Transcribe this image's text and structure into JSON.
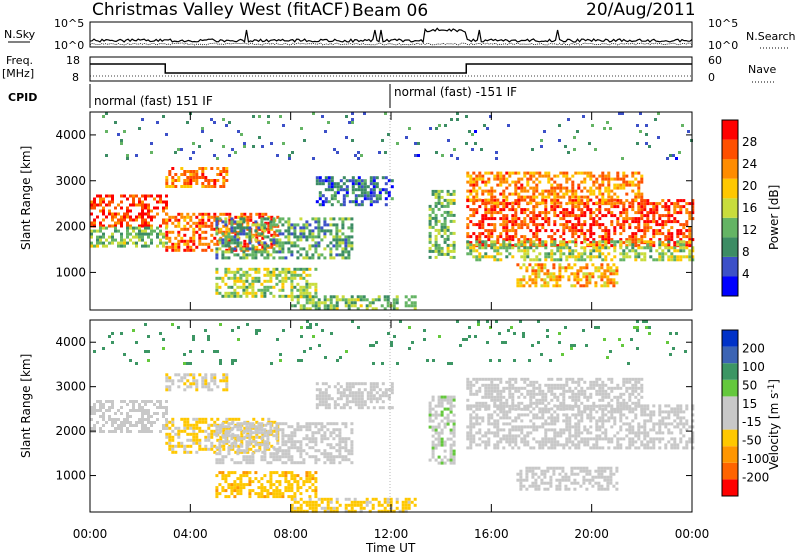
{
  "header": {
    "radar": "Christmas Valley West (fitACF)",
    "beam": "Beam 06",
    "date": "20/Aug/2011"
  },
  "strips": {
    "nsky_label": "N.Sky",
    "nsky_ticks": [
      "10^5",
      "10^0"
    ],
    "nsearch_label": "N.Search",
    "nsearch_ticks": [
      "10^5",
      "10^0"
    ],
    "freq_label": "Freq.",
    "freq_unit": "[MHz]",
    "freq_ticks": [
      "18",
      "8"
    ],
    "nave_label": "Nave",
    "nave_ticks": [
      "60",
      "0"
    ],
    "cpid_label": "CPID",
    "cpid_segments": [
      "normal (fast) 151 IF",
      "normal (fast) -151 IF"
    ]
  },
  "colors": {
    "power": [
      "#0000ff",
      "#3c50c8",
      "#3c8c64",
      "#64b464",
      "#c8dc3c",
      "#ffc800",
      "#ff8c00",
      "#ff5000",
      "#ff0000"
    ],
    "velocity": [
      "#ff0000",
      "#ff6400",
      "#ff9600",
      "#ffc800",
      "#c8c8c8",
      "#c8c8c8",
      "#64c83c",
      "#3c9664",
      "#3c64b4",
      "#0032c8"
    ]
  },
  "chart_data": [
    {
      "type": "heatmap",
      "name": "power",
      "xlabel": "",
      "ylabel": "Slant Range [km]",
      "x_ticks": [
        "00:00",
        "04:00",
        "08:00",
        "12:00",
        "16:00",
        "20:00",
        "00:00"
      ],
      "y_ticks": [
        1000,
        2000,
        3000,
        4000
      ],
      "xlim": [
        0,
        24
      ],
      "ylim": [
        180,
        4500
      ],
      "colorbar_label": "Power [dB]",
      "colorbar_ticks": [
        4,
        8,
        12,
        16,
        20,
        24,
        28
      ],
      "crange": [
        0,
        30
      ],
      "bands": [
        {
          "t": [
            0,
            3
          ],
          "r": [
            2000,
            2700
          ],
          "v": 26
        },
        {
          "t": [
            0,
            3
          ],
          "r": [
            1600,
            2000
          ],
          "v": 12
        },
        {
          "t": [
            3,
            7.5
          ],
          "r": [
            1500,
            2300
          ],
          "v": 24
        },
        {
          "t": [
            3,
            5.5
          ],
          "r": [
            2900,
            3300
          ],
          "v": 22
        },
        {
          "t": [
            5,
            10.5
          ],
          "r": [
            1300,
            2200
          ],
          "v": 10
        },
        {
          "t": [
            5,
            9
          ],
          "r": [
            500,
            1100
          ],
          "v": 14
        },
        {
          "t": [
            8,
            13
          ],
          "r": [
            200,
            500
          ],
          "v": 12
        },
        {
          "t": [
            9,
            12
          ],
          "r": [
            2500,
            3100
          ],
          "v": 6
        },
        {
          "t": [
            13.5,
            14.5
          ],
          "r": [
            1300,
            2800
          ],
          "v": 12
        },
        {
          "t": [
            15,
            24
          ],
          "r": [
            1600,
            2600
          ],
          "v": 26
        },
        {
          "t": [
            15,
            22
          ],
          "r": [
            2500,
            3200
          ],
          "v": 22
        },
        {
          "t": [
            15,
            24
          ],
          "r": [
            1300,
            1700
          ],
          "v": 14
        },
        {
          "t": [
            17,
            21
          ],
          "r": [
            700,
            1200
          ],
          "v": 20
        },
        {
          "t": [
            0,
            24
          ],
          "r": [
            3500,
            4500
          ],
          "v": 8
        }
      ]
    },
    {
      "type": "heatmap",
      "name": "velocity",
      "xlabel": "Time UT",
      "ylabel": "Slant Range [km]",
      "x_ticks": [
        "00:00",
        "04:00",
        "08:00",
        "12:00",
        "16:00",
        "20:00",
        "00:00"
      ],
      "y_ticks": [
        1000,
        2000,
        3000,
        4000
      ],
      "xlim": [
        0,
        24
      ],
      "ylim": [
        180,
        4500
      ],
      "colorbar_label": "Velocity [m s^-1]",
      "colorbar_ticks": [
        "200",
        "100",
        "50",
        "15",
        "-15",
        "-50",
        "-100",
        "-200"
      ],
      "crange": [
        -250,
        250
      ],
      "bands": [
        {
          "t": [
            0,
            3
          ],
          "r": [
            2000,
            2700
          ],
          "v": 0
        },
        {
          "t": [
            3,
            7.5
          ],
          "r": [
            1500,
            2300
          ],
          "v": -60
        },
        {
          "t": [
            3,
            5.5
          ],
          "r": [
            2900,
            3300
          ],
          "v": -40
        },
        {
          "t": [
            5,
            10.5
          ],
          "r": [
            1300,
            2200
          ],
          "v": 0
        },
        {
          "t": [
            5,
            9
          ],
          "r": [
            500,
            1100
          ],
          "v": -80
        },
        {
          "t": [
            8,
            13
          ],
          "r": [
            200,
            500
          ],
          "v": -70
        },
        {
          "t": [
            9,
            12
          ],
          "r": [
            2500,
            3100
          ],
          "v": 0
        },
        {
          "t": [
            13.5,
            14.5
          ],
          "r": [
            1300,
            2800
          ],
          "v": 30
        },
        {
          "t": [
            15,
            24
          ],
          "r": [
            1600,
            2600
          ],
          "v": 0
        },
        {
          "t": [
            15,
            22
          ],
          "r": [
            2500,
            3200
          ],
          "v": 0
        },
        {
          "t": [
            17,
            21
          ],
          "r": [
            700,
            1200
          ],
          "v": 0
        },
        {
          "t": [
            0,
            24
          ],
          "r": [
            3500,
            4500
          ],
          "v": 120
        }
      ]
    }
  ]
}
